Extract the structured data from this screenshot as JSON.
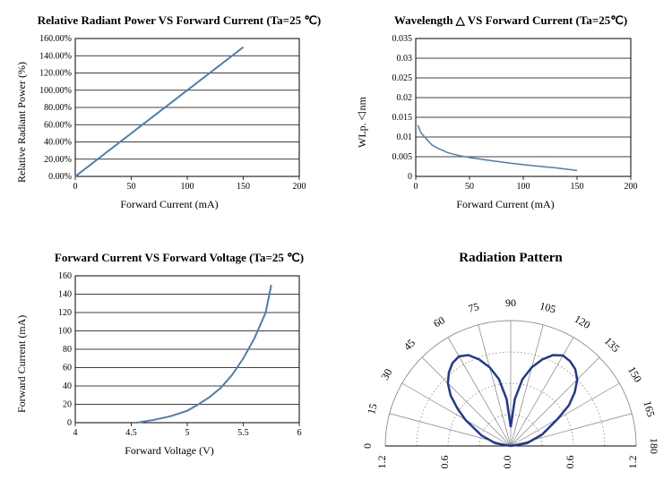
{
  "chart1": {
    "type": "line",
    "title": "Relative Radiant Power VS Forward Current (Ta=25 ℃)",
    "xlabel": "Forward Current (mA)",
    "ylabel": "Relative Radiant Power (%)",
    "xlim": [
      0,
      200
    ],
    "ylim": [
      0,
      1.6
    ],
    "xtick_step": 50,
    "ytick_step": 0.2,
    "xtick_labels": [
      "0",
      "50",
      "100",
      "150",
      "200"
    ],
    "ytick_labels": [
      "0.00%",
      "20.00%",
      "40.00%",
      "60.00%",
      "80.00%",
      "100.00%",
      "120.00%",
      "140.00%",
      "160.00%"
    ],
    "line_color": "#4a7ebb",
    "line_width": 2,
    "border_color": "#000000",
    "grid_color": "#000000",
    "tick_fontsize": 10,
    "data": [
      [
        0,
        0
      ],
      [
        150,
        1.5
      ]
    ]
  },
  "chart2": {
    "type": "line",
    "title": "Wavelength △ VS Forward Current (Ta=25℃)",
    "xlabel": "Forward Current (mA)",
    "ylabel": "WLp.△nm",
    "xlim": [
      0,
      200
    ],
    "ylim": [
      0,
      0.035
    ],
    "xtick_step": 50,
    "ytick_step": 0.005,
    "xtick_labels": [
      "0",
      "50",
      "100",
      "150",
      "200"
    ],
    "ytick_labels": [
      "0",
      "0.005",
      "0.01",
      "0.015",
      "0.02",
      "0.025",
      "0.03",
      "0.035"
    ],
    "line_color": "#4a7ebb",
    "line_width": 1.5,
    "border_color": "#000000",
    "grid_color": "#000000",
    "tick_fontsize": 10,
    "data": [
      [
        2,
        0.013
      ],
      [
        5,
        0.011
      ],
      [
        10,
        0.0095
      ],
      [
        15,
        0.008
      ],
      [
        20,
        0.0072
      ],
      [
        30,
        0.006
      ],
      [
        40,
        0.0053
      ],
      [
        50,
        0.0048
      ],
      [
        70,
        0.004
      ],
      [
        90,
        0.0033
      ],
      [
        110,
        0.0027
      ],
      [
        130,
        0.0022
      ],
      [
        150,
        0.0015
      ]
    ]
  },
  "chart3": {
    "type": "line",
    "title": "Forward Current VS Forward Voltage (Ta=25 ℃)",
    "xlabel": "Forward Voltage (V)",
    "ylabel": "Forward Current (mA)",
    "xlim": [
      4,
      6
    ],
    "ylim": [
      0,
      160
    ],
    "xtick_step": 0.5,
    "ytick_step": 20,
    "xtick_labels": [
      "4",
      "4.5",
      "5",
      "5.5",
      "6"
    ],
    "ytick_labels": [
      "0",
      "20",
      "40",
      "60",
      "80",
      "100",
      "120",
      "140",
      "160"
    ],
    "line_color": "#4a7ebb",
    "line_width": 2,
    "border_color": "#000000",
    "grid_color": "#000000",
    "tick_fontsize": 10,
    "data": [
      [
        4.55,
        0
      ],
      [
        4.7,
        3
      ],
      [
        4.85,
        7
      ],
      [
        5.0,
        13
      ],
      [
        5.1,
        20
      ],
      [
        5.2,
        28
      ],
      [
        5.3,
        38
      ],
      [
        5.4,
        52
      ],
      [
        5.5,
        70
      ],
      [
        5.6,
        92
      ],
      [
        5.7,
        120
      ],
      [
        5.75,
        150
      ]
    ]
  },
  "chart4": {
    "type": "polar",
    "title": "Radiation Pattern",
    "angle_labels": [
      "0",
      "15",
      "30",
      "45",
      "60",
      "75",
      "90",
      "105",
      "120",
      "135",
      "150",
      "165",
      "180"
    ],
    "radial_labels": [
      "1.2",
      "0.6",
      "0.0",
      "0.6",
      "1.2"
    ],
    "radial_rings": [
      0.3,
      0.6,
      0.9,
      1.2
    ],
    "angle_spokes": [
      0,
      15,
      30,
      45,
      60,
      75,
      90,
      105,
      120,
      135,
      150,
      165,
      180
    ],
    "line_color": "#1f3a93",
    "line_width": 2.5,
    "spoke_color": "#808080",
    "ring_color": "#808080",
    "dotted_ring_color": "#606060",
    "label_fontsize": 12,
    "data_angles": [
      0,
      10,
      20,
      30,
      35,
      40,
      45,
      50,
      55,
      60,
      65,
      70,
      75,
      80,
      85,
      90,
      95,
      100,
      105,
      110,
      115,
      120,
      125,
      130,
      135,
      140,
      145,
      150,
      160,
      170,
      180
    ],
    "data_radii": [
      0,
      0.15,
      0.3,
      0.5,
      0.62,
      0.75,
      0.85,
      0.92,
      0.97,
      0.99,
      0.96,
      0.88,
      0.78,
      0.65,
      0.45,
      0.18,
      0.45,
      0.65,
      0.78,
      0.88,
      0.96,
      1.0,
      0.99,
      0.96,
      0.9,
      0.8,
      0.68,
      0.52,
      0.32,
      0.16,
      0
    ],
    "max_radius": 1.2
  }
}
